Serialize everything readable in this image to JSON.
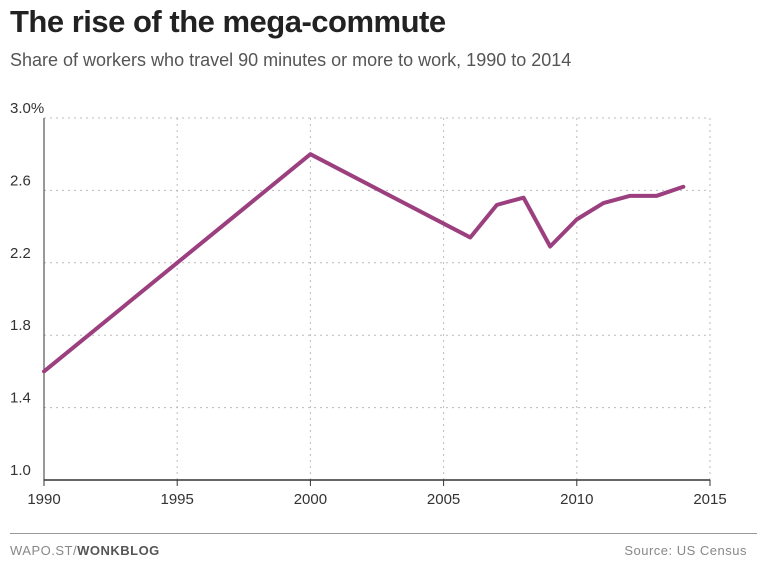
{
  "chart_data": {
    "type": "line",
    "title": "The rise of the mega-commute",
    "subtitle": "Share of workers who travel 90 minutes or more to work, 1990 to 2014",
    "xlabel": "",
    "ylabel": "",
    "xlim": [
      1990,
      2015
    ],
    "ylim": [
      1.0,
      3.0
    ],
    "x_ticks": [
      "1990",
      "1995",
      "2000",
      "2005",
      "2010",
      "2015"
    ],
    "y_ticks": [
      "1.0",
      "1.4",
      "1.8",
      "2.2",
      "2.6",
      "3.0%"
    ],
    "grid": true,
    "line_color": "#9b3f7f",
    "series": [
      {
        "x": [
          1990,
          2000,
          2006,
          2007,
          2008,
          2009,
          2010,
          2011,
          2012,
          2013,
          2014
        ],
        "values": [
          1.6,
          2.8,
          2.34,
          2.52,
          2.56,
          2.29,
          2.44,
          2.53,
          2.57,
          2.57,
          2.62
        ]
      }
    ]
  },
  "footer": {
    "credit_prefix": "WAPO.ST/",
    "credit_bold": "WONKBLOG",
    "source": "Source: US Census"
  }
}
